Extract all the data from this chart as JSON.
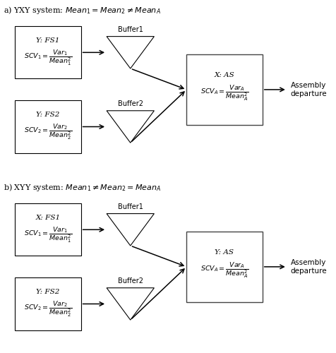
{
  "fig_width": 4.77,
  "fig_height": 5.0,
  "dpi": 100,
  "background": "#ffffff",
  "panel_a": {
    "label_plain": "a) YXY system: ",
    "label_math": "$\\mathit{Mean}_1 = \\mathit{Mean}_2 \\neq \\mathit{Mean}_A$",
    "fs1_label": "Y: FS1",
    "fs2_label": "Y: FS2",
    "as_label": "X: AS",
    "buffer1_label": "Buffer1",
    "buffer2_label": "Buffer2",
    "scv1_top": "$\\mathit{SCV}_1 = $",
    "scv1_frac": "$\\dfrac{\\mathit{Var}_1}{\\mathit{Mean}_1^2}$",
    "scv2_top": "$\\mathit{SCV}_2 = $",
    "scv2_frac": "$\\dfrac{\\mathit{Var}_2}{\\mathit{Mean}_2^2}$",
    "scvA_top": "$\\mathit{SCV}_A = $",
    "scvA_frac": "$\\dfrac{\\mathit{Var}_A}{\\mathit{Mean}_A^2}$",
    "departure": "Assembly\ndeparture"
  },
  "panel_b": {
    "label_plain": "b) XYY system: ",
    "label_math": "$\\mathit{Mean}_1 \\neq \\mathit{Mean}_2 = \\mathit{Mean}_A$",
    "fs1_label": "X: FS1",
    "fs2_label": "Y: FS2",
    "as_label": "Y: AS",
    "buffer1_label": "Buffer1",
    "buffer2_label": "Buffer2",
    "scv1_top": "$\\mathit{SCV}_1 = $",
    "scv1_frac": "$\\dfrac{\\mathit{Var}_1}{\\mathit{Mean}_1^2}$",
    "scv2_top": "$\\mathit{SCV}_2 = $",
    "scv2_frac": "$\\dfrac{\\mathit{Var}_2}{\\mathit{Mean}_2^2}$",
    "scvA_top": "$\\mathit{SCV}_A = $",
    "scvA_frac": "$\\dfrac{\\mathit{Var}_A}{\\mathit{Mean}_A^2}$",
    "departure": "Assembly\ndeparture"
  }
}
